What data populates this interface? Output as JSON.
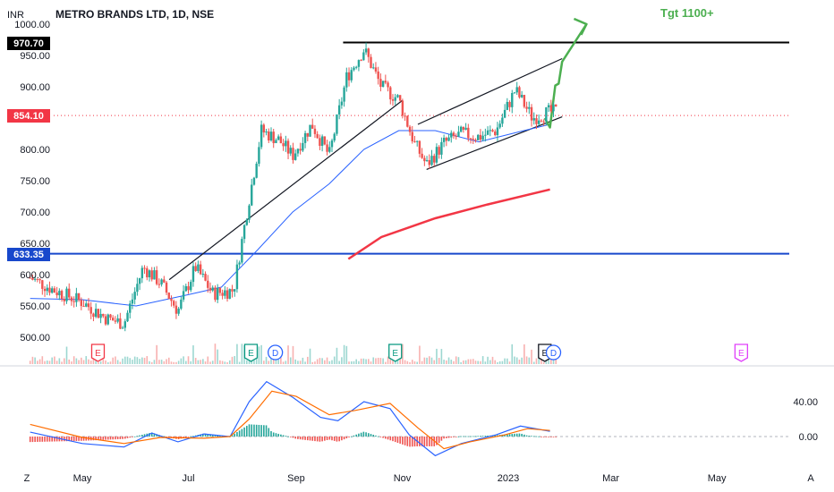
{
  "header": {
    "currency": "INR",
    "symbol_title": "METRO BRANDS LTD, 1D, NSE"
  },
  "price_badges": {
    "high": "970.70",
    "last": "854.10",
    "support": "633.35"
  },
  "annotation": {
    "target_label": "Tgt 1100+"
  },
  "bottom_bar": {
    "left_button": "Z",
    "right_button": "A"
  },
  "colors": {
    "up": "#26a69a",
    "down": "#ef5350",
    "sma_short": "#2962ff",
    "sma_long": "#f23645",
    "support_line": "#1848cc",
    "resistance_line": "#000000",
    "annotation": "#4caf50",
    "macd": "#2962ff",
    "signal": "#ff6d00"
  },
  "chart_data": {
    "type": "candlestick",
    "ylim": [
      480,
      1010
    ],
    "y_ticks": [
      "1000.00",
      "950.00",
      "900.00",
      "850.00",
      "800.00",
      "750.00",
      "700.00",
      "650.00",
      "600.00",
      "550.00",
      "500.00"
    ],
    "x_ticks": [
      "May",
      "Jul",
      "Sep",
      "Nov",
      "2023",
      "Mar",
      "May"
    ],
    "grid": false,
    "anchors": [
      {
        "date": "Apr 01",
        "price": 595
      },
      {
        "date": "Apr 15",
        "price": 575
      },
      {
        "date": "May 01",
        "price": 556
      },
      {
        "date": "May 15",
        "price": 530
      },
      {
        "date": "May 25",
        "price": 522
      },
      {
        "date": "Jun 05",
        "price": 612
      },
      {
        "date": "Jun 15",
        "price": 587
      },
      {
        "date": "Jun 25",
        "price": 542
      },
      {
        "date": "Jul 05",
        "price": 612
      },
      {
        "date": "Jul 15",
        "price": 570
      },
      {
        "date": "Jul 27",
        "price": 575
      },
      {
        "date": "Aug 03",
        "price": 690
      },
      {
        "date": "Aug 12",
        "price": 830
      },
      {
        "date": "Aug 22",
        "price": 815
      },
      {
        "date": "Aug 30",
        "price": 790
      },
      {
        "date": "Sep 10",
        "price": 840
      },
      {
        "date": "Sep 20",
        "price": 790
      },
      {
        "date": "Sep 30",
        "price": 915
      },
      {
        "date": "Oct 10",
        "price": 960
      },
      {
        "date": "Oct 20",
        "price": 900
      },
      {
        "date": "Oct 30",
        "price": 880
      },
      {
        "date": "Nov 08",
        "price": 810
      },
      {
        "date": "Nov 15",
        "price": 775
      },
      {
        "date": "Nov 25",
        "price": 810
      },
      {
        "date": "Dec 05",
        "price": 825
      },
      {
        "date": "Dec 15",
        "price": 820
      },
      {
        "date": "Dec 25",
        "price": 830
      },
      {
        "date": "Jan 05",
        "price": 895
      },
      {
        "date": "Jan 15",
        "price": 850
      },
      {
        "date": "Jan 25",
        "price": 860
      }
    ],
    "sma_short": [
      {
        "date": "Apr 01",
        "price": 562
      },
      {
        "date": "May 01",
        "price": 560
      },
      {
        "date": "Jun 01",
        "price": 550
      },
      {
        "date": "Jul 01",
        "price": 568
      },
      {
        "date": "Jul 20",
        "price": 580
      },
      {
        "date": "Aug 10",
        "price": 640
      },
      {
        "date": "Aug 30",
        "price": 700
      },
      {
        "date": "Sep 20",
        "price": 745
      },
      {
        "date": "Oct 10",
        "price": 800
      },
      {
        "date": "Oct 30",
        "price": 830
      },
      {
        "date": "Nov 20",
        "price": 830
      },
      {
        "date": "Dec 15",
        "price": 812
      },
      {
        "date": "Jan 10",
        "price": 830
      },
      {
        "date": "Jan 25",
        "price": 840
      }
    ],
    "sma_long": [
      {
        "date": "Oct 01",
        "price": 625
      },
      {
        "date": "Oct 20",
        "price": 660
      },
      {
        "date": "Nov 20",
        "price": 690
      },
      {
        "date": "Dec 20",
        "price": 712
      },
      {
        "date": "Jan 25",
        "price": 736
      }
    ],
    "horizontal_lines": [
      {
        "price": 970.7,
        "style": "resistance",
        "from": "Sep 28"
      },
      {
        "price": 633.35,
        "style": "support"
      }
    ],
    "trendlines": [
      {
        "from": {
          "date": "Jun 20",
          "price": 592
        },
        "to": {
          "date": "Nov 01",
          "price": 878
        }
      },
      {
        "from": {
          "date": "Nov 10",
          "price": 840
        },
        "to": {
          "date": "Feb 01",
          "price": 945
        }
      },
      {
        "from": {
          "date": "Nov 15",
          "price": 768
        },
        "to": {
          "date": "Feb 01",
          "price": 852
        }
      }
    ],
    "projection": [
      {
        "date": "Jan 22",
        "price": 850
      },
      {
        "date": "Jan 25",
        "price": 835
      },
      {
        "date": "Jan 28",
        "price": 902
      },
      {
        "date": "Jan 30",
        "price": 905
      },
      {
        "date": "Feb 01",
        "price": 940
      },
      {
        "date": "Feb 15",
        "price": 1000
      }
    ],
    "events": [
      {
        "date": "May 10",
        "label": "E",
        "kind": "earnings-red"
      },
      {
        "date": "Aug 06",
        "label": "E",
        "kind": "earnings-green"
      },
      {
        "date": "Aug 20",
        "label": "D",
        "kind": "dividend"
      },
      {
        "date": "Oct 28",
        "label": "E",
        "kind": "earnings-green"
      },
      {
        "date": "Jan 22",
        "label": "E",
        "kind": "earnings-dark"
      },
      {
        "date": "Jan 27",
        "label": "D",
        "kind": "dividend"
      },
      {
        "date": "May 15",
        "label": "E",
        "kind": "earnings-future"
      }
    ],
    "macd_panel": {
      "y_ticks": [
        "40.00",
        "0.00"
      ],
      "ylim": [
        -25,
        75
      ],
      "macd": [
        {
          "date": "Apr 01",
          "value": 5
        },
        {
          "date": "May 01",
          "value": -8
        },
        {
          "date": "May 25",
          "value": -12
        },
        {
          "date": "Jun 10",
          "value": 4
        },
        {
          "date": "Jun 25",
          "value": -6
        },
        {
          "date": "Jul 10",
          "value": 3
        },
        {
          "date": "Jul 25",
          "value": 0
        },
        {
          "date": "Aug 05",
          "value": 40
        },
        {
          "date": "Aug 15",
          "value": 63
        },
        {
          "date": "Aug 30",
          "value": 45
        },
        {
          "date": "Sep 15",
          "value": 22
        },
        {
          "date": "Sep 25",
          "value": 18
        },
        {
          "date": "Oct 10",
          "value": 40
        },
        {
          "date": "Oct 25",
          "value": 32
        },
        {
          "date": "Nov 05",
          "value": 2
        },
        {
          "date": "Nov 20",
          "value": -22
        },
        {
          "date": "Dec 05",
          "value": -8
        },
        {
          "date": "Dec 25",
          "value": 2
        },
        {
          "date": "Jan 08",
          "value": 12
        },
        {
          "date": "Jan 25",
          "value": 6
        }
      ],
      "signal": [
        {
          "date": "Apr 01",
          "value": 14
        },
        {
          "date": "May 01",
          "value": -1
        },
        {
          "date": "May 25",
          "value": -8
        },
        {
          "date": "Jun 15",
          "value": -1
        },
        {
          "date": "Jul 10",
          "value": -2
        },
        {
          "date": "Jul 25",
          "value": 0
        },
        {
          "date": "Aug 05",
          "value": 20
        },
        {
          "date": "Aug 18",
          "value": 52
        },
        {
          "date": "Sep 01",
          "value": 46
        },
        {
          "date": "Sep 20",
          "value": 25
        },
        {
          "date": "Oct 05",
          "value": 30
        },
        {
          "date": "Oct 25",
          "value": 38
        },
        {
          "date": "Nov 10",
          "value": 10
        },
        {
          "date": "Nov 25",
          "value": -14
        },
        {
          "date": "Dec 10",
          "value": -6
        },
        {
          "date": "Dec 30",
          "value": 2
        },
        {
          "date": "Jan 12",
          "value": 9
        },
        {
          "date": "Jan 25",
          "value": 7
        }
      ]
    }
  }
}
